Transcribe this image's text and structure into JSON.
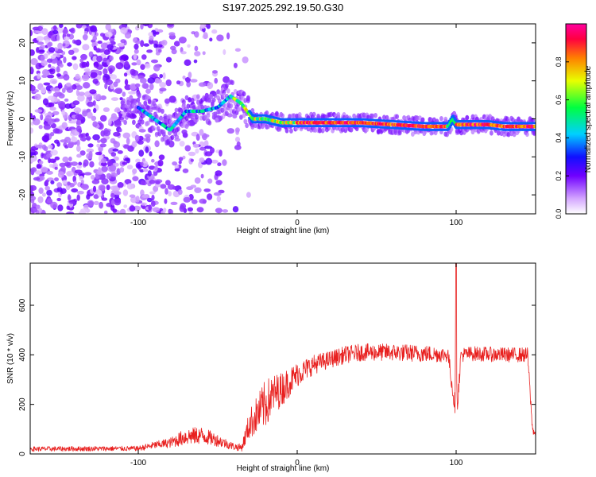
{
  "title": "S197.2025.292.19.50.G30",
  "colors": {
    "snr_line": "#e8201f",
    "axis": "#000000",
    "background": "#ffffff"
  },
  "chart_data": [
    {
      "type": "heatmap",
      "xlabel": "Height of straight line (km)",
      "ylabel": "Frequency (Hz)",
      "xlim": [
        -168,
        150
      ],
      "ylim": [
        -25,
        25
      ],
      "xticks": [
        -100,
        0,
        100
      ],
      "xtick_labels": [
        "-100",
        "0",
        "100"
      ],
      "yticks": [
        -20,
        -10,
        0,
        10,
        20
      ],
      "ytick_labels": [
        "-20",
        "-10",
        "0",
        "10",
        "20"
      ],
      "colorbar": {
        "label": "Normalized spectral amplitude",
        "range": [
          0,
          1
        ],
        "ticks": [
          0.0,
          0.2,
          0.4,
          0.6,
          0.8
        ],
        "tick_labels": [
          "0.0",
          "0.2",
          "0.4",
          "0.6",
          "0.8"
        ]
      },
      "ridge": {
        "description": "dominant frequency track",
        "x": [
          -100,
          -90,
          -80,
          -70,
          -60,
          -50,
          -42,
          -35,
          -28,
          -20,
          -10,
          0,
          20,
          40,
          60,
          80,
          95,
          98,
          100,
          110,
          120,
          130,
          140,
          148
        ],
        "y": [
          3,
          0,
          -3,
          2,
          2,
          3,
          6,
          4,
          0,
          0,
          -1,
          -1,
          -1,
          -1,
          -1.5,
          -2,
          -2,
          0,
          -1.5,
          -1.5,
          -1.5,
          -2,
          -2,
          -2
        ]
      }
    },
    {
      "type": "line",
      "xlabel": "Height of straight line (km)",
      "ylabel": "SNR (10 * v/v)",
      "xlim": [
        -168,
        150
      ],
      "ylim": [
        0,
        770
      ],
      "xticks": [
        -100,
        0,
        100
      ],
      "xtick_labels": [
        "-100",
        "0",
        "100"
      ],
      "yticks": [
        0,
        200,
        400,
        600
      ],
      "ytick_labels": [
        "0",
        "200",
        "400",
        "600"
      ],
      "series": [
        {
          "name": "SNR",
          "x": [
            -168,
            -100,
            -90,
            -80,
            -70,
            -60,
            -50,
            -40,
            -35,
            -30,
            -25,
            -20,
            -15,
            -10,
            -5,
            0,
            10,
            20,
            30,
            40,
            60,
            80,
            95,
            98,
            99,
            100,
            101,
            103,
            110,
            130,
            145,
            148,
            150
          ],
          "mean": [
            20,
            22,
            35,
            45,
            70,
            75,
            55,
            30,
            25,
            120,
            160,
            200,
            240,
            260,
            290,
            320,
            360,
            380,
            400,
            410,
            410,
            405,
            400,
            250,
            190,
            450,
            210,
            400,
            405,
            400,
            400,
            100,
            80
          ],
          "noise": [
            10,
            10,
            15,
            20,
            35,
            35,
            25,
            15,
            15,
            60,
            80,
            100,
            80,
            70,
            60,
            50,
            40,
            35,
            35,
            35,
            35,
            35,
            30,
            40,
            20,
            300,
            40,
            30,
            30,
            30,
            30,
            20,
            10
          ]
        }
      ]
    }
  ]
}
